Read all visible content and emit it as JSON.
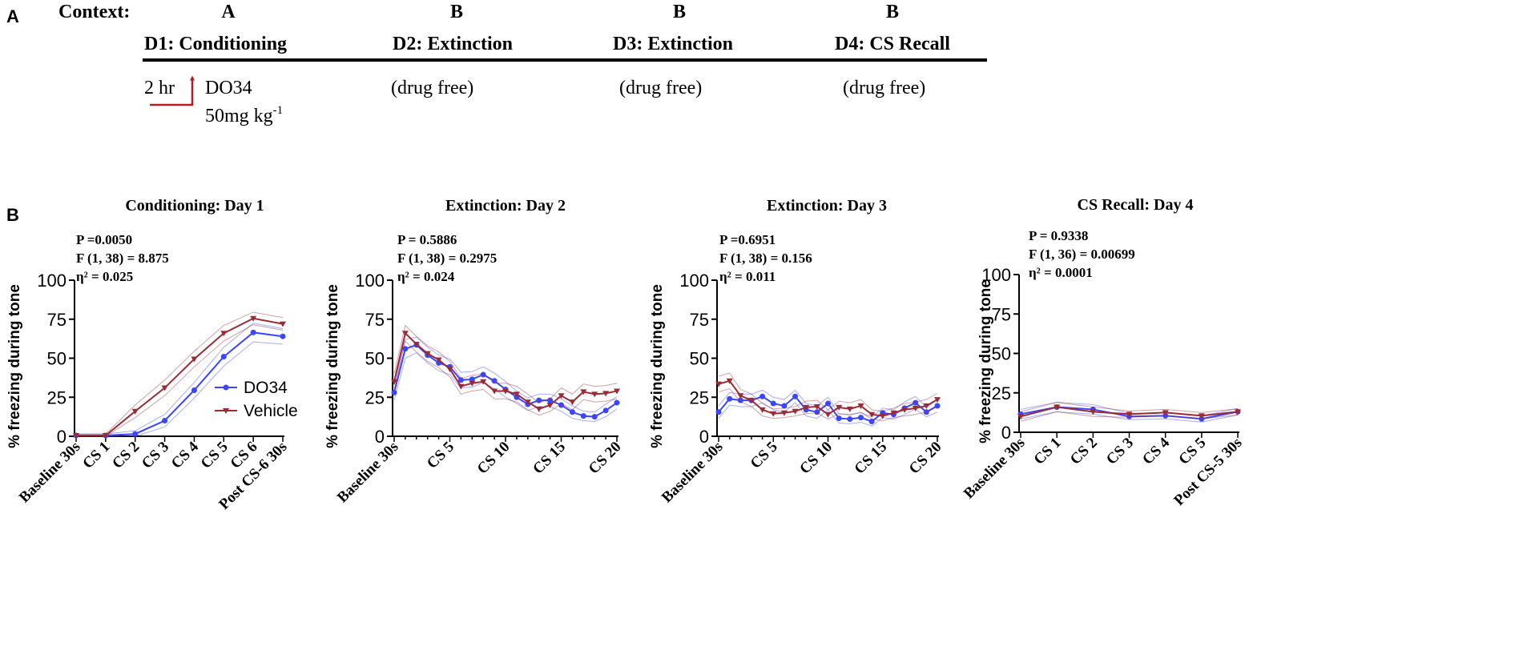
{
  "panel_labels": {
    "a": "A",
    "b": "B"
  },
  "schedule": {
    "context_label": "Context:",
    "days": [
      {
        "context": "A",
        "title": "D1: Conditioning"
      },
      {
        "context": "B",
        "title": "D2: Extinction",
        "note": "(drug free)"
      },
      {
        "context": "B",
        "title": "D3: Extinction",
        "note": "(drug free)"
      },
      {
        "context": "B",
        "title": "D4: CS Recall",
        "note": "(drug free)"
      }
    ],
    "injection_time": "2 hr",
    "drug_name": "DO34",
    "dose": "50mg kg",
    "dose_exponent": "-1"
  },
  "colors": {
    "do34": "#3a46ff",
    "vehicle": "#9b2b35",
    "arrow": "#b21e24"
  },
  "chart_data": [
    {
      "type": "line",
      "title": "Conditioning: Day 1",
      "ylabel": "% freezing during tone",
      "ylim": [
        0,
        100
      ],
      "yticks": [
        0,
        25,
        50,
        75,
        100
      ],
      "x_tick_labels": [
        "Baseline 30s",
        "CS 1",
        "CS 2",
        "CS 3",
        "CS 4",
        "CS 5",
        "CS 6",
        "Post CS-6 30s"
      ],
      "stats": [
        "P =0.0050",
        "F (1, 38) = 8.875",
        "η² = 0.025"
      ],
      "legend": [
        "DO34",
        "Vehicle"
      ],
      "series": [
        {
          "name": "DO34",
          "values": [
            0.5,
            0.5,
            1.5,
            10,
            29.5,
            51,
            66.5,
            64
          ],
          "sem": [
            1,
            1,
            2,
            4,
            5,
            6,
            6,
            5
          ]
        },
        {
          "name": "Vehicle",
          "values": [
            0.5,
            0.5,
            16,
            31,
            49.5,
            66,
            75.5,
            72
          ],
          "sem": [
            1,
            1,
            4,
            5,
            5,
            5,
            4,
            4
          ]
        }
      ]
    },
    {
      "type": "line",
      "title": "Extinction: Day 2",
      "ylabel": "% freezing during tone",
      "ylim": [
        0,
        100
      ],
      "yticks": [
        0,
        25,
        50,
        75,
        100
      ],
      "x_tick_labels": [
        "Baseline 30s",
        "CS 5",
        "CS 10",
        "CS 15",
        "CS 20"
      ],
      "stats": [
        "P = 0.5886",
        "F (1, 38) = 0.2975",
        "η² = 0.024"
      ],
      "series": [
        {
          "name": "DO34",
          "values": [
            28,
            56,
            58.5,
            52,
            47,
            44.5,
            36,
            36.5,
            39.5,
            35.5,
            30,
            25,
            20.5,
            23,
            23,
            20,
            15.5,
            13,
            12.5,
            16.5,
            21.5
          ],
          "sem": [
            5,
            6,
            5,
            5,
            5,
            5,
            5,
            5,
            5,
            5,
            5,
            4,
            4,
            4,
            4,
            4,
            4,
            3,
            3,
            4,
            4
          ]
        },
        {
          "name": "Vehicle",
          "values": [
            35,
            66,
            59,
            53,
            49,
            43,
            32,
            34,
            35,
            29,
            29,
            27,
            22,
            17.5,
            20,
            26,
            22,
            28.5,
            27,
            27.5,
            29
          ],
          "sem": [
            5,
            5,
            5,
            5,
            5,
            5,
            5,
            5,
            5,
            5,
            5,
            5,
            5,
            4,
            4,
            5,
            5,
            5,
            5,
            5,
            5
          ]
        }
      ]
    },
    {
      "type": "line",
      "title": "Extinction: Day 3",
      "ylabel": "% freezing during tone",
      "ylim": [
        0,
        100
      ],
      "yticks": [
        0,
        25,
        50,
        75,
        100
      ],
      "x_tick_labels": [
        "Baseline 30s",
        "CS 5",
        "CS 10",
        "CS 15",
        "CS 20"
      ],
      "stats": [
        "P =0.6951",
        "F (1, 38) = 0.156",
        "η² = 0.011"
      ],
      "series": [
        {
          "name": "DO34",
          "values": [
            15.5,
            24,
            23,
            23,
            25.5,
            21,
            19.5,
            25.5,
            17,
            15.5,
            21,
            11.5,
            11,
            12,
            9.5,
            15,
            14,
            18,
            21.5,
            15.5,
            19.5
          ],
          "sem": [
            4,
            4,
            4,
            4,
            4,
            4,
            4,
            4,
            4,
            4,
            4,
            3,
            3,
            3,
            3,
            3,
            3,
            4,
            4,
            3,
            4
          ]
        },
        {
          "name": "Vehicle",
          "values": [
            33.5,
            35.5,
            26,
            23,
            17,
            14.5,
            15,
            16,
            18.5,
            19,
            14,
            18.5,
            17.5,
            19.5,
            14,
            13,
            15,
            17,
            18,
            19.5,
            23.5
          ],
          "sem": [
            5,
            5,
            4,
            4,
            4,
            3,
            3,
            3,
            4,
            4,
            3,
            4,
            4,
            4,
            3,
            3,
            3,
            4,
            4,
            4,
            4
          ]
        }
      ]
    },
    {
      "type": "line",
      "title": "CS Recall: Day 4",
      "ylabel": "% freezing during tone",
      "ylim": [
        0,
        100
      ],
      "yticks": [
        0,
        25,
        50,
        75,
        100
      ],
      "x_tick_labels": [
        "Baseline 30s",
        "CS 1",
        "CS 2",
        "CS 3",
        "CS 4",
        "CS 5",
        "Post CS-5 30s"
      ],
      "stats": [
        "P = 0.9338",
        "F (1, 36) = 0.00699",
        "η² = 0.0001"
      ],
      "series": [
        {
          "name": "DO34",
          "values": [
            11.5,
            16,
            14.5,
            10,
            10.5,
            8.5,
            13
          ],
          "sem": [
            3,
            3,
            3,
            2,
            2,
            2,
            2
          ]
        },
        {
          "name": "Vehicle",
          "values": [
            10,
            16,
            13,
            11.5,
            12.5,
            10.5,
            13
          ],
          "sem": [
            3,
            3,
            3,
            2,
            2,
            2,
            2
          ]
        }
      ]
    }
  ]
}
